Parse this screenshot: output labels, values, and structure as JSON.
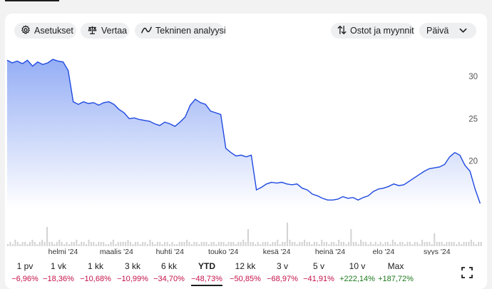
{
  "toolbar": {
    "settings_label": "Asetukset",
    "settings_icon": "gear-icon",
    "compare_label": "Vertaa",
    "compare_icon": "scale-icon",
    "technical_label": "Tekninen analyysi",
    "technical_icon": "trend-line-icon",
    "trades_label": "Ostot ja myynnit",
    "trades_icon": "up-down-arrows-icon",
    "interval_select": "Päivä",
    "interval_icon": "chevron-down-icon"
  },
  "chart_data": {
    "type": "area",
    "title": "",
    "xlabel": "",
    "ylabel": "",
    "ylim": [
      14.5,
      33.2
    ],
    "y_ticks": [
      30,
      25,
      20
    ],
    "y_tick_labels": [
      "30",
      "25",
      "20"
    ],
    "x_ticks": [
      {
        "label": "helmi '24",
        "x": 22
      },
      {
        "label": "maalis '24",
        "x": 43
      },
      {
        "label": "huhti '24",
        "x": 64
      },
      {
        "label": "touko '24",
        "x": 85
      },
      {
        "label": "kesä '24",
        "x": 106
      },
      {
        "label": "heinä '24",
        "x": 127
      },
      {
        "label": "elo '24",
        "x": 148
      },
      {
        "label": "syys '24",
        "x": 169
      }
    ],
    "x_range": [
      0,
      187
    ],
    "grid": false,
    "line_color": "#1f49e0",
    "fill_color_top": "#95aef5",
    "fill_color_bottom": "#ffffff",
    "series": [
      {
        "x": [
          0,
          2,
          4,
          6,
          8,
          10,
          12,
          14,
          16,
          18,
          20,
          22,
          24,
          26,
          28,
          30,
          32,
          34,
          36,
          38,
          40,
          42,
          44,
          46,
          48,
          50,
          52,
          54,
          56,
          58,
          60,
          62,
          64,
          66,
          68,
          70,
          72,
          74,
          76,
          78,
          80,
          82,
          84,
          86,
          88,
          90,
          92,
          94,
          96,
          98,
          100,
          102,
          104,
          106,
          108,
          110,
          112,
          114,
          116,
          118,
          120,
          122,
          124,
          126,
          128,
          130,
          132,
          134,
          136,
          138,
          140,
          142,
          144,
          146,
          148,
          150,
          152,
          154,
          156,
          158,
          160,
          162,
          164,
          166,
          168,
          170,
          172,
          174,
          176,
          178,
          180,
          182,
          184,
          186
        ],
        "values": [
          31.9,
          31.6,
          31.8,
          31.5,
          31.9,
          31.2,
          31.7,
          31.4,
          31.6,
          32.0,
          31.8,
          31.7,
          30.7,
          27.0,
          26.7,
          27.0,
          26.8,
          26.9,
          26.6,
          26.9,
          27.0,
          26.7,
          26.1,
          25.7,
          25.0,
          25.1,
          24.9,
          24.8,
          24.7,
          24.4,
          24.2,
          24.6,
          24.4,
          24.1,
          24.6,
          25.2,
          26.6,
          27.3,
          26.9,
          26.7,
          25.9,
          25.7,
          25.5,
          21.5,
          21.0,
          20.6,
          20.7,
          20.5,
          20.7,
          16.6,
          16.9,
          17.3,
          17.5,
          17.4,
          17.5,
          17.3,
          17.2,
          17.3,
          16.8,
          16.6,
          16.1,
          15.9,
          15.6,
          15.4,
          15.4,
          15.5,
          15.8,
          15.6,
          15.7,
          15.4,
          15.7,
          15.9,
          16.4,
          16.7,
          16.8,
          17.0,
          17.3,
          17.1,
          17.2,
          17.6,
          18.0,
          18.4,
          18.8,
          19.1,
          19.2,
          19.3,
          19.6,
          20.5,
          21.0,
          20.7,
          19.5,
          18.8,
          16.7,
          15.0
        ]
      }
    ],
    "volume": [
      1,
      2,
      1,
      3,
      2,
      1,
      2,
      2,
      1,
      2,
      3,
      2,
      1,
      2,
      3,
      2,
      9,
      2,
      2,
      1,
      2,
      3,
      2,
      1,
      2,
      1,
      2,
      2,
      3,
      1,
      2,
      2,
      1,
      3,
      2,
      2,
      1,
      2,
      2,
      2,
      1,
      1,
      2,
      3,
      1,
      2,
      2,
      2,
      2,
      3,
      2,
      1,
      2,
      2,
      1,
      2,
      2,
      1,
      3,
      2,
      1,
      2,
      2,
      1,
      2,
      2,
      1,
      2,
      1,
      1,
      2,
      2,
      2,
      3,
      2,
      1,
      2,
      2,
      1,
      2,
      2,
      2,
      1,
      2,
      2,
      1,
      2,
      2,
      2,
      1,
      2,
      2,
      2,
      1,
      2,
      2,
      3,
      2,
      8,
      2,
      2,
      1,
      2,
      1,
      2,
      2,
      2,
      1,
      2,
      2,
      3,
      1,
      2,
      2,
      11,
      3,
      2,
      2,
      1,
      2,
      2,
      3,
      2,
      2,
      1,
      2,
      2,
      1,
      3,
      2,
      2,
      1,
      2,
      2,
      1,
      3,
      2,
      2,
      1,
      2,
      8,
      2,
      2,
      1,
      3,
      2,
      2,
      1,
      2,
      1,
      2,
      1,
      2,
      1,
      2,
      2,
      1,
      3,
      2,
      1,
      2,
      2,
      1,
      2,
      2,
      1,
      2,
      2,
      1,
      3,
      2,
      2,
      2,
      1,
      6,
      2,
      2,
      2,
      1,
      2,
      2,
      2,
      2,
      1,
      2,
      1,
      2,
      2,
      2,
      3,
      2,
      1,
      2,
      2
    ]
  },
  "periods": [
    {
      "label": "1 pv",
      "change": "−6,96%",
      "sign": "neg",
      "active": false
    },
    {
      "label": "1 vk",
      "change": "−18,36%",
      "sign": "neg",
      "active": false
    },
    {
      "label": "1 kk",
      "change": "−10,68%",
      "sign": "neg",
      "active": false
    },
    {
      "label": "3 kk",
      "change": "−10,99%",
      "sign": "neg",
      "active": false
    },
    {
      "label": "6 kk",
      "change": "−34,70%",
      "sign": "neg",
      "active": false
    },
    {
      "label": "YTD",
      "change": "−48,73%",
      "sign": "neg",
      "active": true
    },
    {
      "label": "12 kk",
      "change": "−50,85%",
      "sign": "neg",
      "active": false
    },
    {
      "label": "3 v",
      "change": "−68,97%",
      "sign": "neg",
      "active": false
    },
    {
      "label": "5 v",
      "change": "−41,91%",
      "sign": "neg",
      "active": false
    },
    {
      "label": "10 v",
      "change": "+222,14%",
      "sign": "pos",
      "active": false
    },
    {
      "label": "Max",
      "change": "+187,72%",
      "sign": "pos",
      "active": false
    }
  ],
  "expand_icon": "fullscreen-icon"
}
